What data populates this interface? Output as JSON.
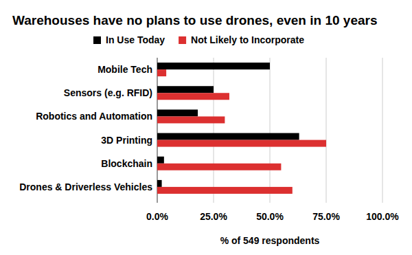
{
  "chart_data": {
    "type": "bar",
    "orientation": "horizontal",
    "title": "Warehouses have no plans to use drones, even in 10 years",
    "x_label": "% of 549 respondents",
    "categories": [
      "Mobile Tech",
      "Sensors (e.g. RFID)",
      "Robotics and Automation",
      "3D Printing",
      "Blockchain",
      "Drones & Driverless Vehicles"
    ],
    "series": [
      {
        "name": "In Use Today",
        "color": "#000000",
        "values": [
          50,
          25,
          18,
          63,
          3,
          2
        ]
      },
      {
        "name": "Not Likely to Incorporate",
        "color": "#dc3030",
        "values": [
          4,
          32,
          30,
          75,
          55,
          60
        ]
      }
    ],
    "xlim": [
      0,
      100
    ],
    "xticks": [
      {
        "value": 0,
        "label": "0.0%"
      },
      {
        "value": 25,
        "label": "25.0%"
      },
      {
        "value": 50,
        "label": "50.0%"
      },
      {
        "value": 75,
        "label": "75.0%"
      },
      {
        "value": 100,
        "label": "100.0%"
      }
    ],
    "grid": true,
    "legend": "top"
  }
}
